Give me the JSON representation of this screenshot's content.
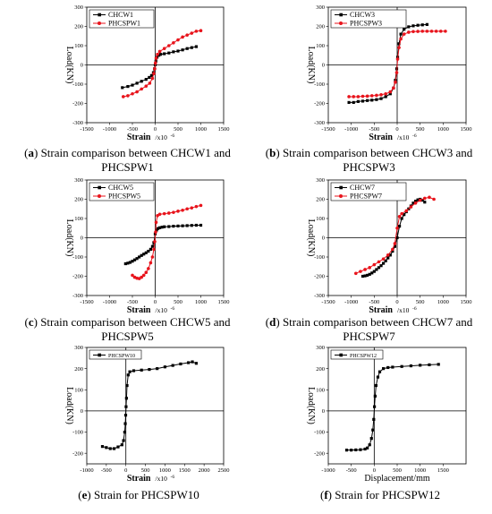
{
  "colors": {
    "black": "#000000",
    "red": "#e8141c"
  },
  "panels": [
    {
      "tag": "a",
      "caption": "Strain comparison between CHCW1 and PHCSPW1",
      "xlabel": "Strain",
      "xunit": "/x10",
      "yunit_lbl": "Load(KN)",
      "chart_data": {
        "type": "line",
        "xlim": [
          -1500,
          1500
        ],
        "ylim": [
          -300,
          300
        ],
        "xticks": [
          -1500,
          -1000,
          -500,
          0,
          500,
          1000,
          1500
        ],
        "yticks": [
          -300,
          -200,
          -100,
          0,
          100,
          200,
          300
        ],
        "series": [
          {
            "name": "CHCW1",
            "color": "#000000",
            "marker": "square",
            "x": [
              -720,
              -600,
              -500,
              -400,
              -300,
              -200,
              -130,
              -80,
              -40,
              -15,
              0,
              15,
              40,
              80,
              120,
              200,
              300,
              400,
              500,
              600,
              700,
              800,
              900
            ],
            "y": [
              -118,
              -112,
              -105,
              -95,
              -85,
              -75,
              -65,
              -55,
              -40,
              -20,
              0,
              20,
              40,
              50,
              55,
              58,
              62,
              68,
              72,
              78,
              85,
              90,
              95
            ]
          },
          {
            "name": "PHCSPW1",
            "color": "#e8141c",
            "marker": "circle",
            "x": [
              -700,
              -600,
              -500,
              -400,
              -300,
              -200,
              -120,
              -60,
              -30,
              -10,
              5,
              20,
              50,
              100,
              200,
              300,
              400,
              500,
              600,
              700,
              800,
              900,
              1000
            ],
            "y": [
              -165,
              -160,
              -150,
              -140,
              -125,
              -110,
              -95,
              -70,
              -45,
              -20,
              10,
              35,
              55,
              70,
              85,
              100,
              115,
              130,
              145,
              155,
              165,
              175,
              178
            ]
          }
        ]
      }
    },
    {
      "tag": "b",
      "caption": "Strain comparison between CHCW3 and PHCSPW3",
      "xlabel": "Strain",
      "xunit": "/x10",
      "yunit_lbl": "Load(KN)",
      "chart_data": {
        "type": "line",
        "xlim": [
          -1500,
          1500
        ],
        "ylim": [
          -300,
          300
        ],
        "xticks": [
          -1500,
          -1000,
          -500,
          0,
          500,
          1000,
          1500
        ],
        "yticks": [
          -300,
          -200,
          -100,
          0,
          100,
          200,
          300
        ],
        "series": [
          {
            "name": "CHCW3",
            "color": "#000000",
            "marker": "square",
            "x": [
              -1050,
              -950,
              -850,
              -750,
              -650,
              -550,
              -450,
              -350,
              -250,
              -150,
              -80,
              -40,
              -10,
              10,
              40,
              80,
              150,
              250,
              350,
              450,
              550,
              650
            ],
            "y": [
              -195,
              -195,
              -190,
              -188,
              -185,
              -183,
              -180,
              -175,
              -165,
              -150,
              -120,
              -80,
              -20,
              40,
              110,
              160,
              185,
              198,
              203,
              206,
              208,
              210
            ]
          },
          {
            "name": "PHCSPW3",
            "color": "#e8141c",
            "marker": "circle",
            "x": [
              -1050,
              -950,
              -850,
              -750,
              -650,
              -550,
              -450,
              -350,
              -250,
              -150,
              -80,
              -40,
              -10,
              10,
              40,
              80,
              150,
              250,
              350,
              450,
              550,
              650,
              750,
              850,
              950,
              1050
            ],
            "y": [
              -165,
              -165,
              -165,
              -163,
              -162,
              -160,
              -158,
              -155,
              -150,
              -140,
              -120,
              -90,
              -40,
              30,
              90,
              135,
              160,
              170,
              173,
              174,
              175,
              175,
              175,
              175,
              175,
              175
            ]
          }
        ]
      }
    },
    {
      "tag": "c",
      "caption": "Strain comparison between CHCW5 and PHCSPW5",
      "xlabel": "Strain",
      "xunit": "/x10",
      "yunit_lbl": "Load(KN)",
      "chart_data": {
        "type": "line",
        "xlim": [
          -1500,
          1500
        ],
        "ylim": [
          -300,
          300
        ],
        "xticks": [
          -1500,
          -1000,
          -500,
          0,
          500,
          1000,
          1500
        ],
        "yticks": [
          -300,
          -200,
          -100,
          0,
          100,
          200,
          300
        ],
        "series": [
          {
            "name": "CHCW5",
            "color": "#000000",
            "marker": "square",
            "x": [
              -650,
              -600,
              -550,
              -500,
              -450,
              -400,
              -350,
              -300,
              -250,
              -200,
              -150,
              -100,
              -60,
              -30,
              0,
              30,
              60,
              100,
              150,
              200,
              300,
              400,
              500,
              600,
              700,
              800,
              900,
              1000
            ],
            "y": [
              -135,
              -132,
              -128,
              -122,
              -115,
              -108,
              -100,
              -92,
              -85,
              -78,
              -70,
              -60,
              -45,
              -25,
              20,
              40,
              48,
              52,
              55,
              57,
              58,
              60,
              61,
              62,
              63,
              64,
              65,
              65
            ]
          },
          {
            "name": "PHCSPW5",
            "color": "#e8141c",
            "marker": "circle",
            "x": [
              -500,
              -450,
              -400,
              -350,
              -300,
              -250,
              -200,
              -150,
              -100,
              -60,
              -30,
              -10,
              10,
              20,
              50,
              100,
              200,
              300,
              400,
              500,
              600,
              700,
              800,
              900,
              1000
            ],
            "y": [
              -195,
              -205,
              -210,
              -212,
              -205,
              -195,
              -180,
              -160,
              -130,
              -100,
              -60,
              -20,
              30,
              80,
              115,
              122,
              125,
              128,
              132,
              138,
              143,
              150,
              155,
              162,
              168
            ]
          }
        ]
      }
    },
    {
      "tag": "d",
      "caption": "Strain comparison between CHCW7 and PHCSPW7",
      "xlabel": "Strain",
      "xunit": "/x10",
      "yunit_lbl": "Load(KN)",
      "chart_data": {
        "type": "line",
        "xlim": [
          -1500,
          1500
        ],
        "ylim": [
          -300,
          300
        ],
        "xticks": [
          -1500,
          -1000,
          -500,
          0,
          500,
          1000,
          1500
        ],
        "yticks": [
          -300,
          -200,
          -100,
          0,
          100,
          200,
          300
        ],
        "series": [
          {
            "name": "CHCW7",
            "color": "#000000",
            "marker": "square",
            "x": [
              -750,
              -700,
              -650,
              -600,
              -550,
              -500,
              -450,
              -400,
              -350,
              -300,
              -250,
              -200,
              -150,
              -100,
              -50,
              0,
              50,
              100,
              150,
              200,
              250,
              300,
              350,
              400,
              450,
              500,
              550,
              600
            ],
            "y": [
              -200,
              -198,
              -195,
              -190,
              -183,
              -175,
              -165,
              -155,
              -145,
              -133,
              -120,
              -105,
              -90,
              -70,
              -45,
              0,
              60,
              100,
              120,
              135,
              150,
              165,
              180,
              190,
              197,
              200,
              195,
              185
            ]
          },
          {
            "name": "PHCSPW7",
            "color": "#e8141c",
            "marker": "circle",
            "x": [
              -900,
              -800,
              -700,
              -600,
              -500,
              -400,
              -300,
              -200,
              -100,
              -50,
              0,
              50,
              100,
              200,
              300,
              400,
              500,
              600,
              700,
              800
            ],
            "y": [
              -185,
              -175,
              -165,
              -155,
              -140,
              -125,
              -110,
              -90,
              -60,
              -30,
              50,
              110,
              125,
              140,
              160,
              180,
              195,
              205,
              210,
              200
            ]
          }
        ]
      }
    },
    {
      "tag": "e",
      "caption": "Strain for PHCSPW10",
      "xlabel": "Strain",
      "xunit": "/x10",
      "yunit_lbl": "Load(KN)",
      "chart_data": {
        "type": "line",
        "xlim": [
          -1000,
          2500
        ],
        "ylim": [
          -250,
          300
        ],
        "xticks": [
          -1000,
          -500,
          0,
          500,
          1000,
          1500,
          2000,
          2500
        ],
        "yticks": [
          -200,
          -100,
          0,
          100,
          200,
          300
        ],
        "series": [
          {
            "name": "PHCSPW10",
            "color": "#000000",
            "marker": "square",
            "x": [
              -600,
              -500,
              -400,
              -300,
              -200,
              -100,
              -60,
              -30,
              -15,
              -5,
              5,
              15,
              30,
              60,
              100,
              200,
              400,
              600,
              800,
              1000,
              1200,
              1400,
              1600,
              1700,
              1800
            ],
            "y": [
              -168,
              -173,
              -178,
              -178,
              -170,
              -160,
              -140,
              -100,
              -60,
              -20,
              20,
              60,
              120,
              170,
              185,
              190,
              193,
              196,
              200,
              208,
              215,
              222,
              228,
              232,
              225
            ]
          }
        ]
      }
    },
    {
      "tag": "f",
      "caption": "Strain for PHCSPW12",
      "xlabel": "Displacement/mm",
      "xunit": "",
      "yunit_lbl": "Load(KN)",
      "chart_data": {
        "type": "line",
        "xlim": [
          -1000,
          2000
        ],
        "ylim": [
          -250,
          300
        ],
        "xticks": [
          -1000,
          -500,
          0,
          500,
          1000,
          1500
        ],
        "yticks": [
          -200,
          -100,
          0,
          100,
          200,
          300
        ],
        "series": [
          {
            "name": "PHCSPW12",
            "color": "#000000",
            "marker": "square",
            "x": [
              -600,
              -500,
              -400,
              -300,
              -200,
              -150,
              -100,
              -60,
              -30,
              -10,
              5,
              20,
              40,
              80,
              120,
              200,
              300,
              400,
              600,
              800,
              1000,
              1200,
              1400
            ],
            "y": [
              -185,
              -185,
              -184,
              -183,
              -180,
              -175,
              -160,
              -130,
              -90,
              -40,
              20,
              70,
              120,
              160,
              185,
              200,
              205,
              207,
              210,
              213,
              216,
              218,
              220
            ]
          }
        ]
      }
    }
  ]
}
